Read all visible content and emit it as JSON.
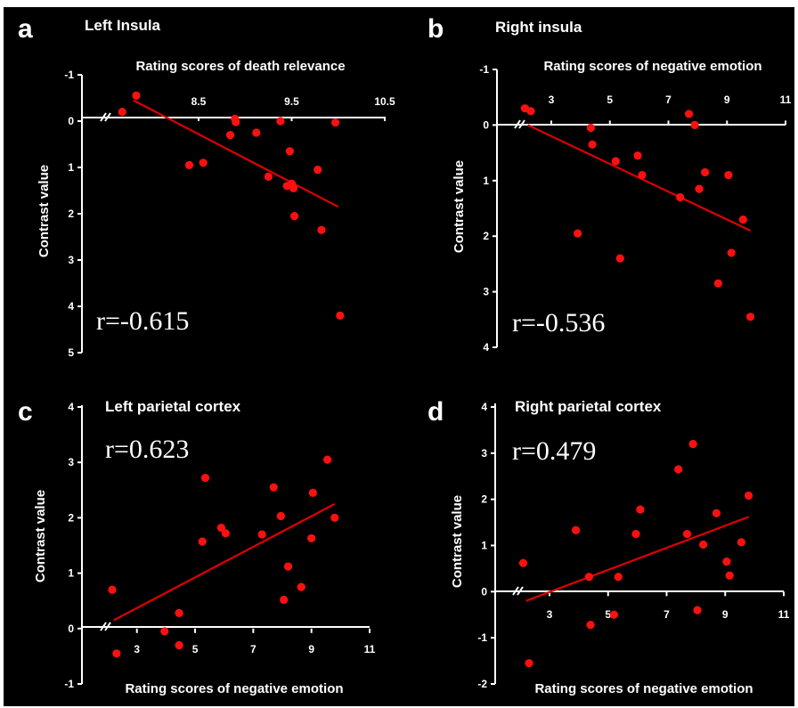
{
  "chart_data": [
    {
      "letter": "a",
      "type": "scatter",
      "title": "Left Insula",
      "xlabel": "Rating scores of death relevance",
      "ylabel": "Contrast value",
      "annotation": "r=-0.615",
      "y_inverted": true,
      "xlim": [
        7.4,
        10.5
      ],
      "ylim": [
        -1,
        5
      ],
      "xticks": [
        8.5,
        9.5,
        10.5
      ],
      "xtick_labels": [
        "8.5",
        "9.5",
        "10.5"
      ],
      "yticks": [
        -1,
        0,
        1,
        2,
        3,
        4,
        5
      ],
      "ytick_labels": [
        "-1",
        "0",
        "1",
        "2",
        "3",
        "4",
        "5"
      ],
      "x": [
        7.68,
        7.83,
        8.4,
        8.55,
        8.84,
        8.89,
        8.9,
        9.12,
        9.25,
        9.38,
        9.45,
        9.48,
        9.5,
        9.52,
        9.53,
        9.78,
        9.82,
        9.97,
        10.02
      ],
      "y": [
        -0.2,
        -0.55,
        0.95,
        0.9,
        0.3,
        -0.05,
        0.02,
        0.25,
        1.2,
        0.0,
        1.4,
        0.65,
        1.35,
        1.45,
        2.05,
        1.05,
        2.35,
        0.03,
        4.2
      ],
      "trend": {
        "x": [
          7.8,
          10.0
        ],
        "y": [
          -0.45,
          1.85
        ]
      },
      "point_color": "#ff1010",
      "line_color": "#e00000"
    },
    {
      "letter": "b",
      "type": "scatter",
      "title": "Right insula",
      "xlabel": "Rating scores of negative emotion",
      "ylabel": "Contrast value",
      "annotation": "r=-0.536",
      "y_inverted": true,
      "xlim": [
        1.6,
        11
      ],
      "ylim": [
        -1,
        4
      ],
      "xticks": [
        3,
        5,
        7,
        9,
        11
      ],
      "xtick_labels": [
        "3",
        "5",
        "7",
        "9",
        "11"
      ],
      "yticks": [
        -1,
        0,
        1,
        2,
        3,
        4
      ],
      "ytick_labels": [
        "-1",
        "0",
        "1",
        "2",
        "3",
        "4"
      ],
      "x": [
        2.1,
        2.3,
        3.9,
        4.35,
        4.4,
        5.2,
        5.35,
        5.95,
        6.1,
        7.4,
        7.7,
        7.9,
        8.05,
        8.25,
        8.7,
        9.05,
        9.15,
        9.55,
        9.8
      ],
      "y": [
        -0.3,
        -0.25,
        1.95,
        0.05,
        0.35,
        0.65,
        2.4,
        0.55,
        0.9,
        1.3,
        -0.2,
        0.0,
        1.15,
        0.85,
        2.85,
        0.9,
        2.3,
        1.7,
        3.45
      ],
      "trend": {
        "x": [
          2.2,
          9.8
        ],
        "y": [
          0.0,
          1.9
        ]
      },
      "point_color": "#ff1010",
      "line_color": "#e00000"
    },
    {
      "letter": "c",
      "type": "scatter",
      "title": "Left parietal cortex",
      "xlabel": "Rating scores of negative emotion",
      "ylabel": "Contrast value",
      "annotation": "r=0.623",
      "y_inverted": false,
      "xlim": [
        1.6,
        11
      ],
      "ylim": [
        -1,
        4
      ],
      "xticks": [
        3,
        5,
        7,
        9,
        11
      ],
      "xtick_labels": [
        "3",
        "5",
        "7",
        "9",
        "11"
      ],
      "yticks": [
        -1,
        0,
        1,
        2,
        3,
        4
      ],
      "ytick_labels": [
        "-1",
        "0",
        "1",
        "2",
        "3",
        "4"
      ],
      "x": [
        2.15,
        2.3,
        3.95,
        4.45,
        4.45,
        5.25,
        5.35,
        5.9,
        6.05,
        7.3,
        7.7,
        7.95,
        8.05,
        8.2,
        8.65,
        9.0,
        9.05,
        9.55,
        9.8
      ],
      "y": [
        0.7,
        -0.45,
        -0.05,
        0.28,
        -0.3,
        1.57,
        2.72,
        1.82,
        1.72,
        1.7,
        2.55,
        2.03,
        0.52,
        1.12,
        0.75,
        1.63,
        2.45,
        3.05,
        2.0
      ],
      "trend": {
        "x": [
          2.2,
          9.8
        ],
        "y": [
          0.15,
          2.25
        ]
      },
      "point_color": "#ff1010",
      "line_color": "#e00000"
    },
    {
      "letter": "d",
      "type": "scatter",
      "title": "Right parietal cortex",
      "xlabel": "Rating scores of negative emotion",
      "ylabel": "Contrast value",
      "annotation": "r=0.479",
      "y_inverted": false,
      "xlim": [
        1.6,
        11
      ],
      "ylim": [
        -2,
        4
      ],
      "xticks": [
        3,
        5,
        7,
        9,
        11
      ],
      "xtick_labels": [
        "3",
        "5",
        "7",
        "9",
        "11"
      ],
      "yticks": [
        -2,
        -1,
        0,
        1,
        2,
        3,
        4
      ],
      "ytick_labels": [
        "-2",
        "-1",
        "0",
        "1",
        "2",
        "3",
        "4"
      ],
      "x": [
        2.1,
        2.3,
        3.9,
        4.35,
        4.4,
        5.2,
        5.35,
        5.95,
        6.1,
        7.4,
        7.7,
        7.9,
        8.05,
        8.25,
        8.7,
        9.05,
        9.15,
        9.55,
        9.8
      ],
      "y": [
        0.62,
        -1.55,
        1.33,
        0.32,
        -0.72,
        -0.5,
        0.32,
        1.25,
        1.78,
        2.65,
        1.25,
        3.2,
        -0.4,
        1.02,
        1.7,
        0.65,
        0.35,
        1.07,
        2.08
      ],
      "trend": {
        "x": [
          2.2,
          9.8
        ],
        "y": [
          -0.2,
          1.62
        ]
      },
      "point_color": "#ff1010",
      "line_color": "#e00000"
    }
  ]
}
